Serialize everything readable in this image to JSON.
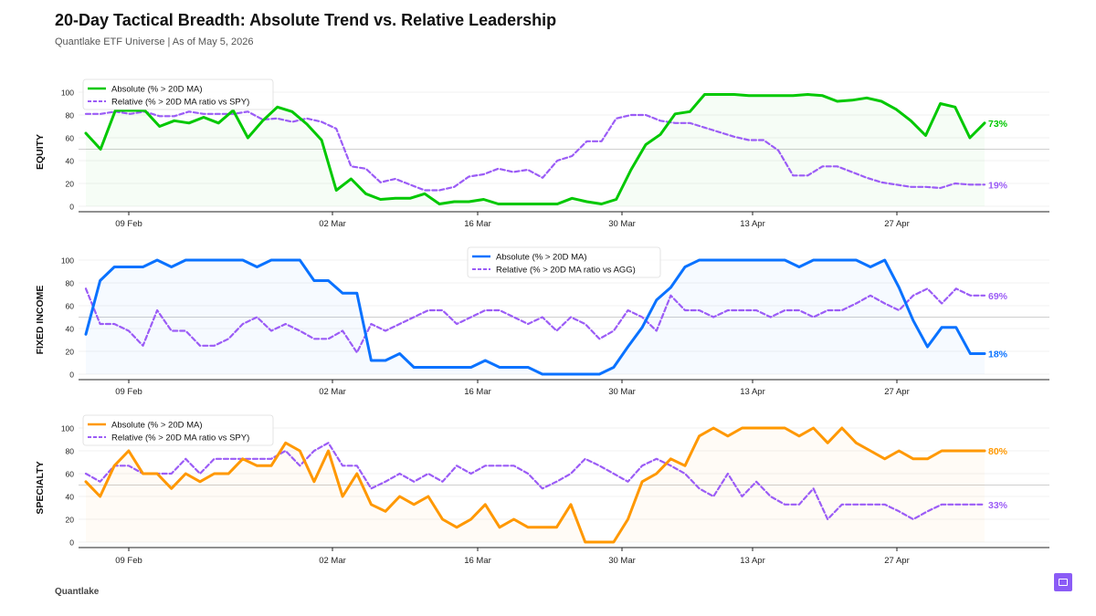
{
  "header": {
    "title": "20-Day Tactical Breadth: Absolute Trend vs. Relative Leadership",
    "subtitle": "Quantlake ETF Universe  |  As of May 5, 2026"
  },
  "footer": {
    "brand": "Quantlake"
  },
  "chart_data": [
    {
      "type": "line",
      "panel_label": "EQUITY",
      "x_ticks": [
        "09 Feb",
        "02 Mar",
        "16 Mar",
        "30 Mar",
        "13 Apr",
        "27 Apr"
      ],
      "ylim": [
        0,
        100
      ],
      "y_ticks": [
        "0",
        "20",
        "40",
        "60",
        "80",
        "100"
      ],
      "legend_position": "top-left",
      "color": "#00c800",
      "series": [
        {
          "name": "Absolute (% > 20D MA)",
          "style": "solid",
          "end_label": "73%",
          "values": [
            64,
            50,
            84,
            84,
            84,
            70,
            75,
            73,
            78,
            73,
            84,
            60,
            75,
            87,
            83,
            72,
            58,
            14,
            24,
            11,
            6,
            7,
            7,
            11,
            2,
            4,
            4,
            6,
            2,
            2,
            2,
            2,
            2,
            7,
            4,
            2,
            6,
            32,
            54,
            63,
            81,
            83,
            98,
            98,
            98,
            97,
            97,
            97,
            97,
            98,
            97,
            92,
            93,
            95,
            92,
            85,
            75,
            62,
            90,
            87,
            60,
            73
          ]
        },
        {
          "name": "Relative (% > 20D MA ratio vs SPY)",
          "style": "dashed",
          "color": "#9b5cf6",
          "end_label": "19%",
          "values": [
            81,
            81,
            83,
            81,
            83,
            79,
            79,
            83,
            81,
            81,
            81,
            83,
            76,
            77,
            74,
            77,
            74,
            68,
            35,
            33,
            21,
            24,
            19,
            14,
            14,
            17,
            26,
            28,
            33,
            30,
            32,
            25,
            40,
            44,
            57,
            57,
            77,
            80,
            80,
            75,
            73,
            73,
            69,
            65,
            61,
            58,
            58,
            49,
            27,
            27,
            35,
            35,
            30,
            25,
            21,
            19,
            17,
            17,
            16,
            20,
            19,
            19
          ]
        }
      ]
    },
    {
      "type": "line",
      "panel_label": "FIXED INCOME",
      "x_ticks": [
        "09 Feb",
        "02 Mar",
        "16 Mar",
        "30 Mar",
        "13 Apr",
        "27 Apr"
      ],
      "ylim": [
        0,
        100
      ],
      "y_ticks": [
        "0",
        "20",
        "40",
        "60",
        "80",
        "100"
      ],
      "legend_position": "top-center",
      "color": "#0a72ff",
      "series": [
        {
          "name": "Absolute (% > 20D MA)",
          "style": "solid",
          "end_label": "18%",
          "values": [
            35,
            82,
            94,
            94,
            94,
            100,
            94,
            100,
            100,
            100,
            100,
            100,
            94,
            100,
            100,
            100,
            82,
            82,
            71,
            71,
            12,
            12,
            18,
            6,
            6,
            6,
            6,
            6,
            12,
            6,
            6,
            6,
            0,
            0,
            0,
            0,
            0,
            6,
            24,
            41,
            65,
            76,
            94,
            100,
            100,
            100,
            100,
            100,
            100,
            100,
            94,
            100,
            100,
            100,
            100,
            94,
            100,
            76,
            47,
            24,
            41,
            41,
            18,
            18
          ]
        },
        {
          "name": "Relative (% > 20D MA ratio vs AGG)",
          "style": "dashed",
          "color": "#9b5cf6",
          "end_label": "69%",
          "values": [
            75,
            44,
            44,
            38,
            25,
            56,
            38,
            38,
            25,
            25,
            31,
            44,
            50,
            38,
            44,
            38,
            31,
            31,
            38,
            19,
            44,
            38,
            44,
            50,
            56,
            56,
            44,
            50,
            56,
            56,
            50,
            44,
            50,
            38,
            50,
            44,
            31,
            38,
            56,
            50,
            38,
            69,
            56,
            56,
            50,
            56,
            56,
            56,
            50,
            56,
            56,
            50,
            56,
            56,
            62,
            69,
            62,
            56,
            69,
            75,
            62,
            75,
            69,
            69
          ]
        }
      ]
    },
    {
      "type": "line",
      "panel_label": "SPECIALTY",
      "x_ticks": [
        "09 Feb",
        "02 Mar",
        "16 Mar",
        "30 Mar",
        "13 Apr",
        "27 Apr"
      ],
      "ylim": [
        0,
        100
      ],
      "y_ticks": [
        "0",
        "20",
        "40",
        "60",
        "80",
        "100"
      ],
      "legend_position": "top-left",
      "color": "#ff9800",
      "series": [
        {
          "name": "Absolute (% > 20D MA)",
          "style": "solid",
          "end_label": "80%",
          "values": [
            53,
            40,
            67,
            80,
            60,
            60,
            47,
            60,
            53,
            60,
            60,
            73,
            67,
            67,
            87,
            80,
            53,
            80,
            40,
            60,
            33,
            27,
            40,
            33,
            40,
            20,
            13,
            20,
            33,
            13,
            20,
            13,
            13,
            13,
            33,
            0,
            0,
            0,
            20,
            53,
            60,
            73,
            67,
            93,
            100,
            93,
            100,
            100,
            100,
            100,
            93,
            100,
            87,
            100,
            87,
            80,
            73,
            80,
            73,
            73,
            80,
            80,
            80,
            80
          ]
        },
        {
          "name": "Relative (% > 20D MA ratio vs SPY)",
          "style": "dashed",
          "color": "#9b5cf6",
          "end_label": "33%",
          "values": [
            60,
            53,
            67,
            67,
            60,
            60,
            60,
            73,
            60,
            73,
            73,
            73,
            73,
            73,
            80,
            67,
            80,
            87,
            67,
            67,
            47,
            53,
            60,
            53,
            60,
            53,
            67,
            60,
            67,
            67,
            67,
            60,
            47,
            53,
            60,
            73,
            67,
            60,
            53,
            67,
            73,
            67,
            60,
            47,
            40,
            60,
            40,
            53,
            40,
            33,
            33,
            47,
            20,
            33,
            33,
            33,
            33,
            27,
            20,
            27,
            33,
            33,
            33,
            33
          ]
        }
      ]
    }
  ]
}
